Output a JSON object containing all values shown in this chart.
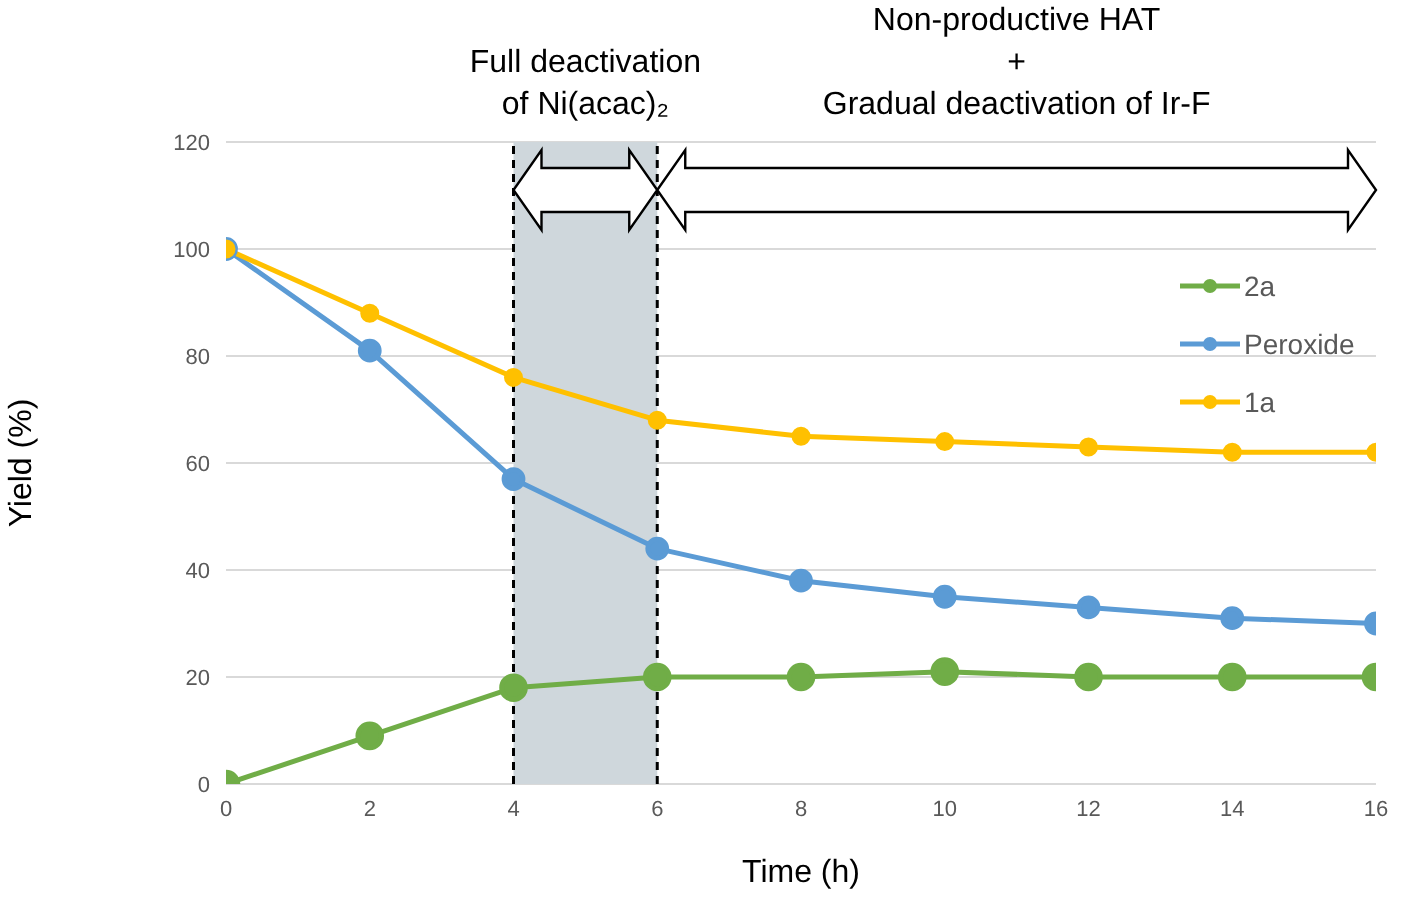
{
  "chart_data": {
    "type": "line",
    "xlabel": "Time (h)",
    "ylabel": "Yield (%)",
    "x": [
      0,
      2,
      4,
      6,
      8,
      10,
      12,
      14,
      16
    ],
    "series": [
      {
        "name": "2a",
        "color": "#70ad47",
        "values": [
          0,
          9,
          18,
          20,
          20,
          21,
          20,
          20,
          20
        ]
      },
      {
        "name": "Peroxide",
        "color": "#5b9bd5",
        "values": [
          100,
          81,
          57,
          44,
          38,
          35,
          33,
          31,
          30
        ]
      },
      {
        "name": "1a",
        "color": "#ffc000",
        "values": [
          100,
          88,
          76,
          68,
          65,
          64,
          63,
          62,
          62
        ]
      }
    ],
    "xlim": [
      0,
      16
    ],
    "xticks": [
      0,
      2,
      4,
      6,
      8,
      10,
      12,
      14,
      16
    ],
    "ylim": [
      0,
      120
    ],
    "yticks": [
      0,
      20,
      40,
      60,
      80,
      100,
      120
    ],
    "bands": [
      {
        "axis": "x",
        "from": 4,
        "to": 6,
        "label": "Full deactivation\nof Ni(acac)₂",
        "color": "#cfd7dc"
      }
    ],
    "ref_lines": [
      {
        "axis": "x",
        "value": 4,
        "color": "#000000",
        "line_style": "dashed"
      },
      {
        "axis": "x",
        "value": 6,
        "color": "#000000",
        "line_style": "dashed"
      }
    ],
    "annotations": [
      "Non-productive HAT\n+\nGradual deactivation of Ir-F"
    ],
    "grid": "y",
    "legend": "top right",
    "marker": "circle",
    "line_style": "solid"
  }
}
